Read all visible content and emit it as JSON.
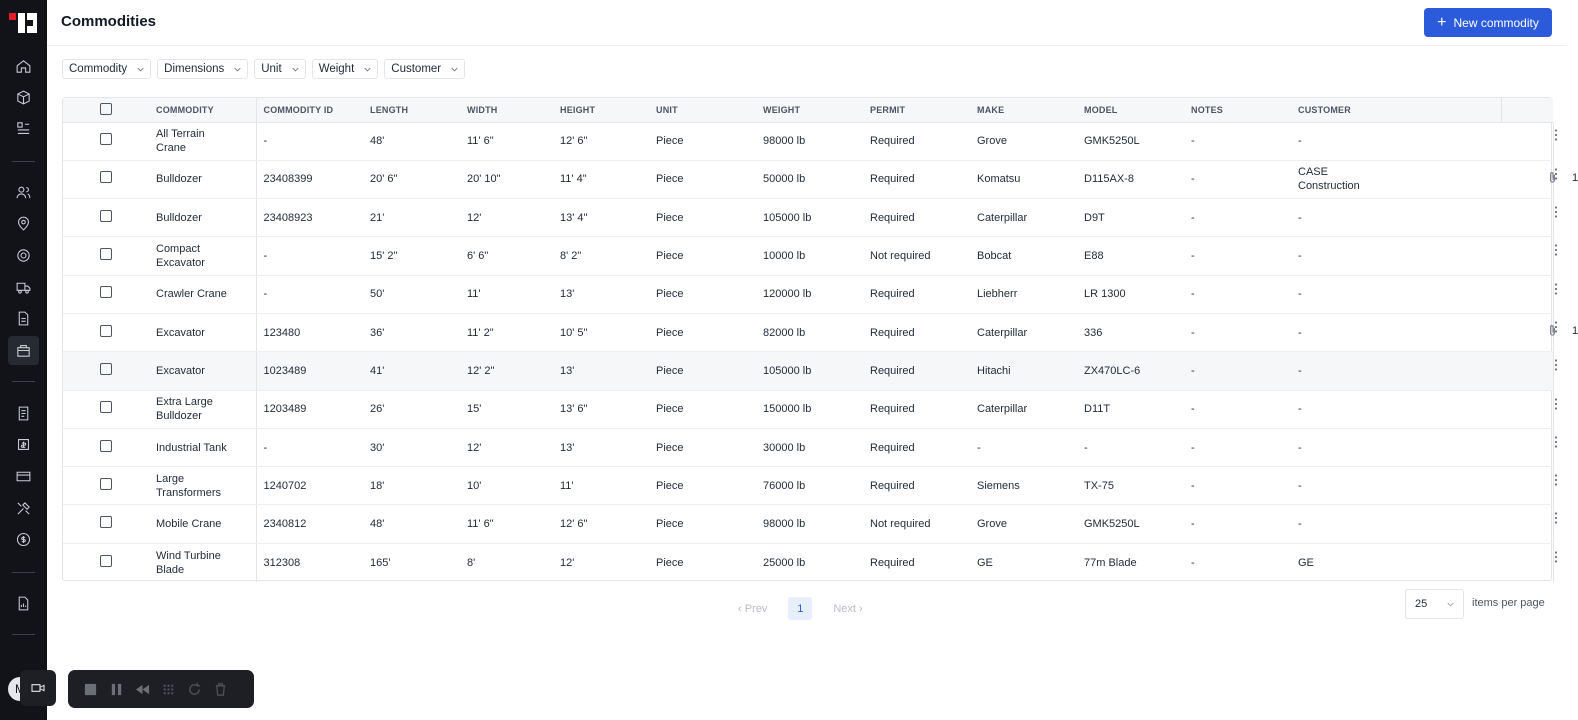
{
  "header": {
    "title": "Commodities",
    "new_button_label": "New commodity"
  },
  "filters": [
    "Commodity",
    "Dimensions",
    "Unit",
    "Weight",
    "Customer"
  ],
  "table": {
    "columns": [
      "COMMODITY",
      "COMMODITY ID",
      "LENGTH",
      "WIDTH",
      "HEIGHT",
      "UNIT",
      "WEIGHT",
      "PERMIT",
      "MAKE",
      "MODEL",
      "NOTES",
      "CUSTOMER"
    ],
    "rows": [
      {
        "commodity": "All Terrain Crane",
        "id": "-",
        "length": "48'",
        "width": "11' 6\"",
        "height": "12' 6\"",
        "unit": "Piece",
        "weight": "98000 lb",
        "permit": "Required",
        "make": "Grove",
        "model": "GMK5250L",
        "notes": "-",
        "customer": "-",
        "attachments": ""
      },
      {
        "commodity": "Bulldozer",
        "id": "23408399",
        "length": "20' 6\"",
        "width": "20' 10\"",
        "height": "11' 4\"",
        "unit": "Piece",
        "weight": "50000 lb",
        "permit": "Required",
        "make": "Komatsu",
        "model": "D115AX-8",
        "notes": "-",
        "customer": "CASE Construction",
        "attachments": "1"
      },
      {
        "commodity": "Bulldozer",
        "id": "23408923",
        "length": "21'",
        "width": "12'",
        "height": "13' 4\"",
        "unit": "Piece",
        "weight": "105000 lb",
        "permit": "Required",
        "make": "Caterpillar",
        "model": "D9T",
        "notes": "-",
        "customer": "-",
        "attachments": ""
      },
      {
        "commodity": "Compact Excavator",
        "id": "-",
        "length": "15' 2\"",
        "width": "6' 6\"",
        "height": "8' 2\"",
        "unit": "Piece",
        "weight": "10000 lb",
        "permit": "Not required",
        "make": "Bobcat",
        "model": "E88",
        "notes": "-",
        "customer": "-",
        "attachments": ""
      },
      {
        "commodity": "Crawler Crane",
        "id": "-",
        "length": "50'",
        "width": "11'",
        "height": "13'",
        "unit": "Piece",
        "weight": "120000 lb",
        "permit": "Required",
        "make": "Liebherr",
        "model": "LR 1300",
        "notes": "-",
        "customer": "-",
        "attachments": ""
      },
      {
        "commodity": "Excavator",
        "id": "123480",
        "length": "36'",
        "width": "11' 2\"",
        "height": "10' 5\"",
        "unit": "Piece",
        "weight": "82000 lb",
        "permit": "Required",
        "make": "Caterpillar",
        "model": "336",
        "notes": "-",
        "customer": "-",
        "attachments": "1"
      },
      {
        "commodity": "Excavator",
        "id": "1023489",
        "length": "41'",
        "width": "12' 2\"",
        "height": "13'",
        "unit": "Piece",
        "weight": "105000 lb",
        "permit": "Required",
        "make": "Hitachi",
        "model": "ZX470LC-6",
        "notes": "-",
        "customer": "-",
        "attachments": ""
      },
      {
        "commodity": "Extra Large Bulldozer",
        "id": "1203489",
        "length": "26'",
        "width": "15'",
        "height": "13' 6\"",
        "unit": "Piece",
        "weight": "150000 lb",
        "permit": "Required",
        "make": "Caterpillar",
        "model": "D11T",
        "notes": "-",
        "customer": "-",
        "attachments": ""
      },
      {
        "commodity": "Industrial Tank",
        "id": "-",
        "length": "30'",
        "width": "12'",
        "height": "13'",
        "unit": "Piece",
        "weight": "30000 lb",
        "permit": "Required",
        "make": "-",
        "model": "-",
        "notes": "-",
        "customer": "-",
        "attachments": ""
      },
      {
        "commodity": "Large Transformers",
        "id": "1240702",
        "length": "18'",
        "width": "10'",
        "height": "11'",
        "unit": "Piece",
        "weight": "76000 lb",
        "permit": "Required",
        "make": "Siemens",
        "model": "TX-75",
        "notes": "-",
        "customer": "-",
        "attachments": ""
      },
      {
        "commodity": "Mobile Crane",
        "id": "2340812",
        "length": "48'",
        "width": "11' 6\"",
        "height": "12' 6\"",
        "unit": "Piece",
        "weight": "98000 lb",
        "permit": "Not required",
        "make": "Grove",
        "model": "GMK5250L",
        "notes": "-",
        "customer": "-",
        "attachments": ""
      },
      {
        "commodity": "Wind Turbine Blade",
        "id": "312308",
        "length": "165'",
        "width": "8'",
        "height": "12'",
        "unit": "Piece",
        "weight": "25000 lb",
        "permit": "Required",
        "make": "GE",
        "model": "77m Blade",
        "notes": "-",
        "customer": "GE",
        "attachments": ""
      }
    ]
  },
  "pagination": {
    "prev": "Prev",
    "current": "1",
    "next": "Next",
    "per_page": "25",
    "per_page_label": "items per page"
  },
  "user": {
    "avatar_initial": "M"
  },
  "colors": {
    "sidebar": "#111318",
    "accent": "#2b5bdb",
    "logo_red": "#e11d2a"
  }
}
